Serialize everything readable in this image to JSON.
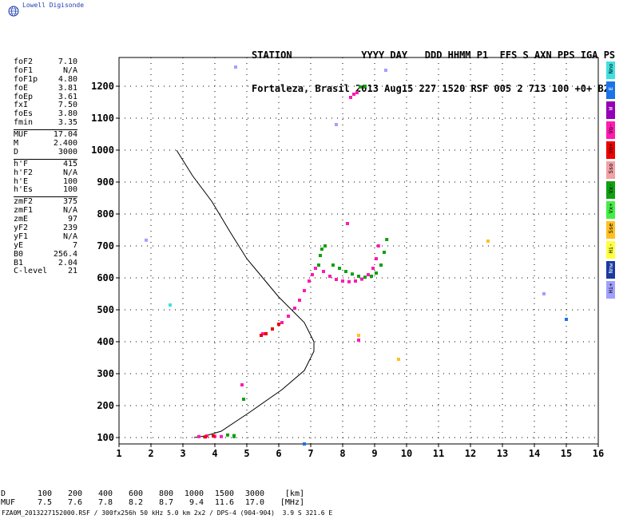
{
  "logo": {
    "text": "Lowell Digisonde"
  },
  "header": {
    "line1": "STATION            YYYY DAY   DDD HHMM P1  FFS S AXN PPS IGA PS",
    "line2": "Fortaleza, Brasil 2013 Aug15 227 1520 RSF 005 2 713 100 +0+ B2"
  },
  "params": {
    "group1": [
      {
        "label": "foF2",
        "value": "7.10"
      },
      {
        "label": "foF1",
        "value": "N/A"
      },
      {
        "label": "foF1p",
        "value": "4.80"
      },
      {
        "label": "foE",
        "value": "3.81"
      },
      {
        "label": "foEp",
        "value": "3.61"
      },
      {
        "label": "fxI",
        "value": "7.50"
      },
      {
        "label": "foEs",
        "value": "3.80"
      },
      {
        "label": "fmin",
        "value": "3.35"
      }
    ],
    "group2": [
      {
        "label": "MUF",
        "value": "17.04"
      },
      {
        "label": "M",
        "value": "2.400"
      },
      {
        "label": "D",
        "value": "3000"
      }
    ],
    "group3": [
      {
        "label": "h'F",
        "value": "415"
      },
      {
        "label": "h'F2",
        "value": "N/A"
      },
      {
        "label": "h'E",
        "value": "100"
      },
      {
        "label": "h'Es",
        "value": "100"
      }
    ],
    "group4": [
      {
        "label": "zmF2",
        "value": "375"
      },
      {
        "label": "zmF1",
        "value": "N/A"
      },
      {
        "label": "zmE",
        "value": "97"
      },
      {
        "label": "yF2",
        "value": "239"
      },
      {
        "label": "yF1",
        "value": "N/A"
      },
      {
        "label": "yE",
        "value": "7"
      },
      {
        "label": "B0",
        "value": "256.4"
      },
      {
        "label": "B1",
        "value": "2.04"
      },
      {
        "label": "C-level",
        "value": "21"
      }
    ]
  },
  "legend": [
    {
      "label": "Nno",
      "color": "#40e0e0"
    },
    {
      "label": "E",
      "color": "#1a73e8"
    },
    {
      "label": "W",
      "color": "#9400b8"
    },
    {
      "label": "Vo-",
      "color": "#ff1ab0"
    },
    {
      "label": "Vo+",
      "color": "#ee0000"
    },
    {
      "label": "Sso",
      "color": "#f2a0a8"
    },
    {
      "label": "Vx-",
      "color": "#10a010"
    },
    {
      "label": "Vx+",
      "color": "#44ee44"
    },
    {
      "label": "Sse",
      "color": "#ffc020"
    },
    {
      "label": "Hi-",
      "color": "#ffff40"
    },
    {
      "label": "Nnw",
      "color": "#1a3aa0"
    },
    {
      "label": "Hi+",
      "color": "#a0a0ff"
    }
  ],
  "table": {
    "row1_label": "D",
    "row1": [
      "100",
      "200",
      "400",
      "600",
      "800",
      "1000",
      "1500",
      "3000",
      "[km]"
    ],
    "row2_label": "MUF",
    "row2": [
      "7.5",
      "7.6",
      "7.8",
      "8.2",
      "8.7",
      "9.4",
      "11.6",
      "17.0",
      "[MHz]"
    ]
  },
  "footer": {
    "text": "FZA0M_2013227152000.RSF / 300fx256h 50 kHz 5.0 km 2x2 / DPS-4 (904-904)  3.9 S 321.6 E"
  },
  "chart_data": {
    "type": "scatter",
    "title": "",
    "xlabel": "",
    "ylabel": "",
    "xlim": [
      1,
      16
    ],
    "ylim": [
      80,
      1290
    ],
    "xticks": [
      1,
      2,
      3,
      4,
      5,
      6,
      7,
      8,
      9,
      10,
      11,
      12,
      13,
      14,
      15,
      16
    ],
    "yticks": [
      100,
      200,
      300,
      400,
      500,
      600,
      700,
      800,
      900,
      1000,
      1100,
      1200
    ],
    "grid": true,
    "profile": {
      "name": "",
      "color": "#000000",
      "x": [
        2.8,
        3.3,
        3.9,
        4.5,
        5.0,
        5.5,
        6.0,
        6.5,
        6.8,
        7.0,
        7.1,
        7.1,
        6.8,
        6.1,
        5.1,
        4.2,
        3.7,
        3.35
      ],
      "y": [
        1000,
        920,
        840,
        740,
        660,
        600,
        540,
        490,
        460,
        420,
        400,
        370,
        310,
        250,
        180,
        120,
        105,
        100
      ]
    },
    "traces": [
      {
        "name": "Vo-",
        "color": "#ff1ab0",
        "x": [
          5.5,
          5.8,
          6.1,
          6.3,
          6.5,
          6.65,
          6.8,
          6.95,
          7.05,
          7.15,
          7.25
        ],
        "y": [
          425,
          440,
          460,
          480,
          505,
          530,
          560,
          590,
          610,
          630,
          640
        ]
      },
      {
        "name": "Vo+",
        "color": "#ee0000",
        "x": [
          5.45,
          5.6,
          5.8,
          6.0
        ],
        "y": [
          420,
          425,
          440,
          455
        ]
      },
      {
        "name": "Vo-",
        "color": "#ff1ab0",
        "x": [
          7.4,
          7.6,
          7.8,
          8.0,
          8.2,
          8.4,
          8.6,
          8.8,
          8.95,
          9.05,
          9.12
        ],
        "y": [
          620,
          605,
          595,
          590,
          588,
          590,
          596,
          610,
          630,
          660,
          700
        ]
      },
      {
        "name": "Vx-",
        "color": "#10a010",
        "x": [
          7.25,
          7.3,
          7.35,
          7.45
        ],
        "y": [
          640,
          670,
          690,
          700
        ]
      },
      {
        "name": "Vx-",
        "color": "#10a010",
        "x": [
          7.7,
          7.9,
          8.1,
          8.3,
          8.5,
          8.7,
          8.9,
          9.05,
          9.2,
          9.3,
          9.38
        ],
        "y": [
          640,
          630,
          620,
          612,
          605,
          602,
          605,
          615,
          640,
          680,
          720
        ]
      },
      {
        "name": "Vo-",
        "color": "#ff1ab0",
        "x": [
          8.25,
          8.35,
          8.45
        ],
        "y": [
          1165,
          1175,
          1180
        ]
      },
      {
        "name": "Vx-",
        "color": "#10a010",
        "x": [
          8.55,
          8.7
        ],
        "y": [
          1198,
          1200
        ]
      },
      {
        "name": "Vo-",
        "color": "#ff1ab0",
        "x": [
          3.5,
          3.75,
          4.0,
          4.2
        ],
        "y": [
          103,
          105,
          104,
          103
        ]
      },
      {
        "name": "Vo+",
        "color": "#ee0000",
        "x": [
          3.7,
          3.95
        ],
        "y": [
          102,
          105
        ]
      },
      {
        "name": "Vx-",
        "color": "#10a010",
        "x": [
          4.4,
          4.6,
          4.6
        ],
        "y": [
          108,
          106,
          103
        ]
      },
      {
        "name": "Vo-",
        "color": "#ff1ab0",
        "x": [
          4.85,
          8.5,
          8.15
        ],
        "y": [
          265,
          405,
          770
        ]
      },
      {
        "name": "Vx-",
        "color": "#10a010",
        "x": [
          4.9
        ],
        "y": [
          220
        ]
      },
      {
        "name": "E",
        "color": "#1a73e8",
        "x": [
          6.8,
          15.0
        ],
        "y": [
          80,
          470
        ]
      },
      {
        "name": "Hi+",
        "color": "#a0a0ff",
        "x": [
          1.85,
          4.65,
          9.35,
          14.3,
          7.8
        ],
        "y": [
          718,
          1260,
          1250,
          550,
          1080
        ]
      },
      {
        "name": "Nno",
        "color": "#40e0e0",
        "x": [
          2.6
        ],
        "y": [
          515
        ]
      },
      {
        "name": "Sse",
        "color": "#ffc020",
        "x": [
          12.55,
          9.75,
          8.5
        ],
        "y": [
          715,
          345,
          420
        ]
      }
    ]
  }
}
